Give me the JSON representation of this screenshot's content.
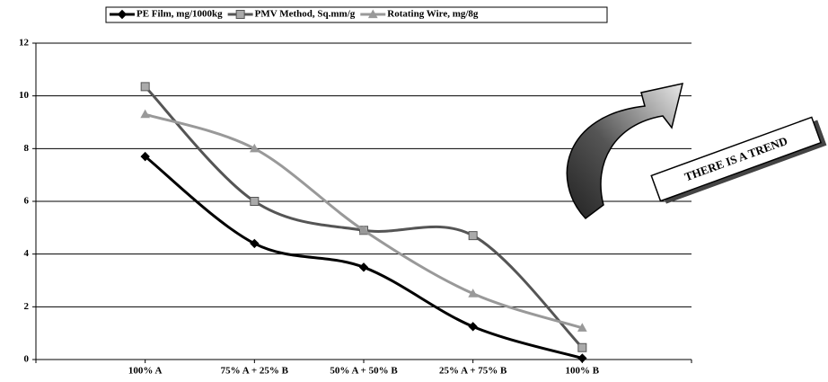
{
  "chart_data": {
    "type": "line",
    "categories": [
      "100% A",
      "75% A + 25% B",
      "50% A + 50% B",
      "25% A + 75% B",
      "100% B"
    ],
    "series": [
      {
        "name": "PE Film, mg/1000kg",
        "color": "#000000",
        "marker": "diamond",
        "values": [
          7.7,
          4.4,
          3.5,
          1.25,
          0.05
        ]
      },
      {
        "name": "PMV Method, Sq.mm/g",
        "color": "#555555",
        "marker": "square",
        "values": [
          10.35,
          6.0,
          4.9,
          4.7,
          0.45
        ]
      },
      {
        "name": "Rotating Wire, mg/8g",
        "color": "#999999",
        "marker": "triangle",
        "values": [
          9.3,
          8.0,
          4.9,
          2.5,
          1.2
        ]
      }
    ],
    "ylim": [
      0,
      12
    ],
    "yticks": [
      0,
      2,
      4,
      6,
      8,
      10,
      12
    ],
    "grid": true,
    "legend": "top",
    "annotation": "THERE IS A TREND"
  }
}
